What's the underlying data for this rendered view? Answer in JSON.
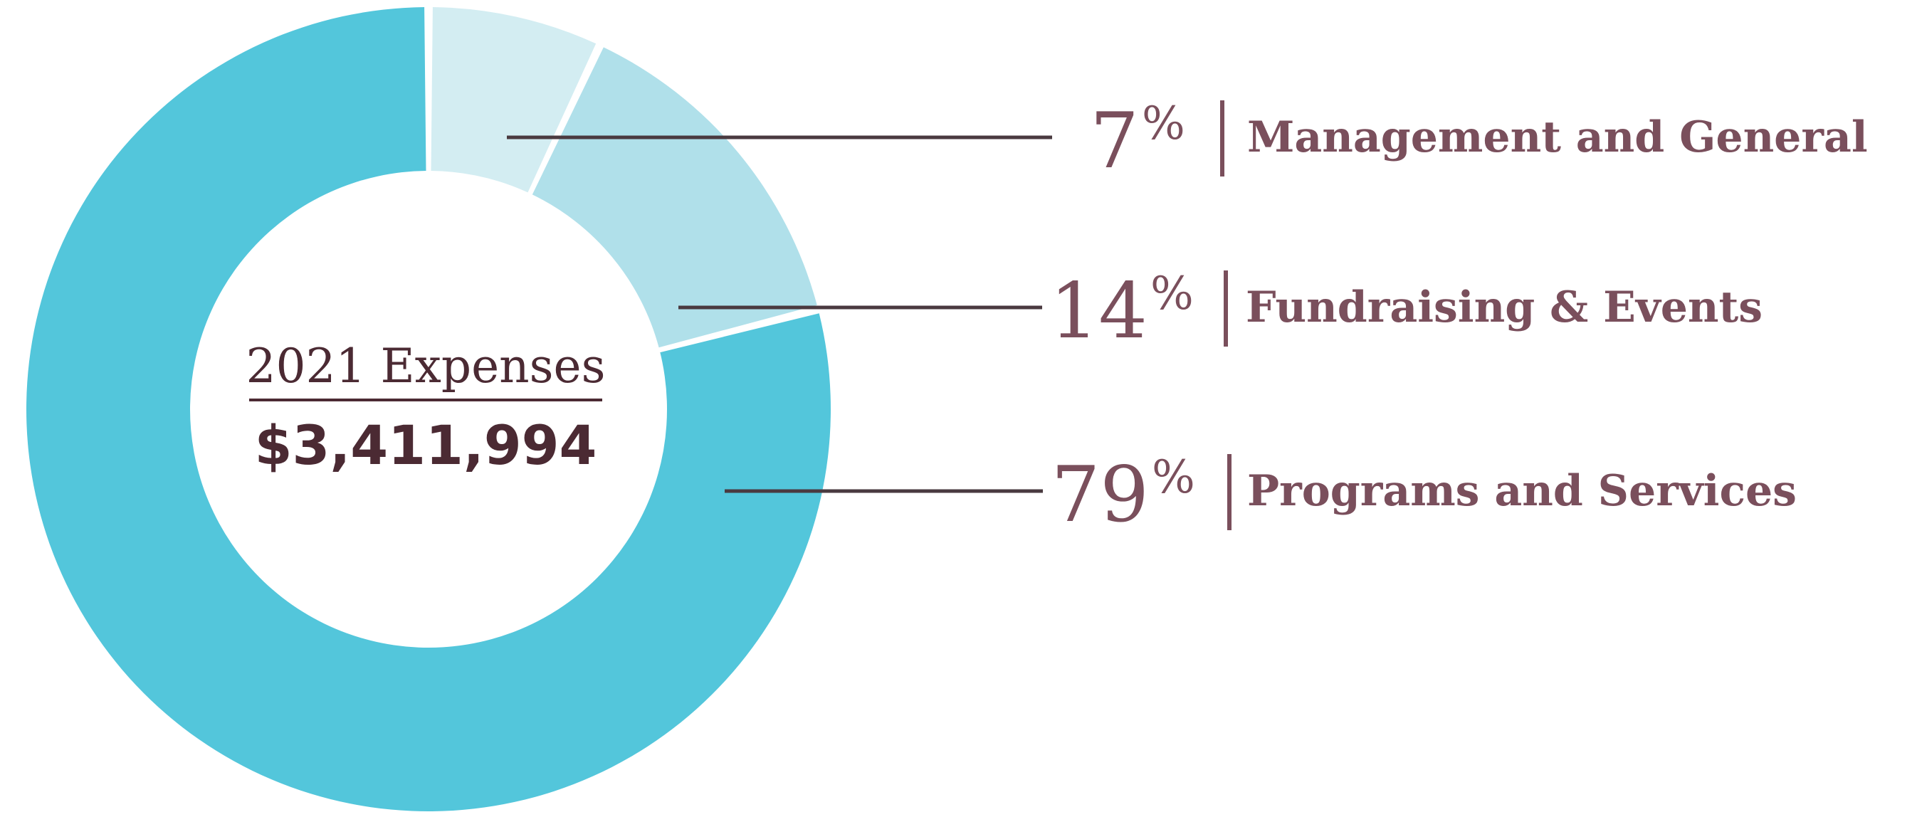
{
  "chart_data": {
    "type": "pie",
    "donut": true,
    "center_title": "2021 Expenses",
    "center_value": "$3,411,994",
    "percent_sign": "%",
    "categories": [
      "Management and General",
      "Fundraising & Events",
      "Programs and Services"
    ],
    "values": [
      7,
      14,
      79
    ],
    "value_labels": [
      "7",
      "14",
      "79"
    ],
    "colors": [
      "#d3edf2",
      "#b0e0ea",
      "#53c6db"
    ],
    "text_color": "#7a4f5c",
    "center_text_color": "#4b2a33",
    "leader_line_color": "#4a3a40"
  }
}
